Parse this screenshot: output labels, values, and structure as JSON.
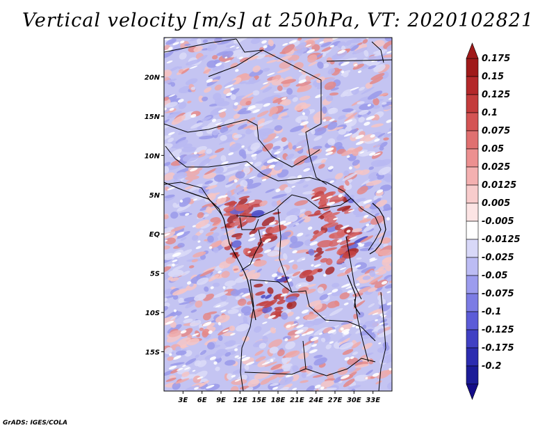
{
  "title": "Vertical velocity [m/s] at 250hPa, VT: 2020102821",
  "credit": "GrADS: IGES/COLA",
  "map": {
    "variable": "Vertical velocity",
    "units": "m/s",
    "level": "250hPa",
    "valid_time": "2020102821",
    "lon_range": [
      0,
      36
    ],
    "lat_range": [
      -20,
      25
    ],
    "lat_ticks": [
      {
        "value": 20,
        "label": "20N"
      },
      {
        "value": 15,
        "label": "15N"
      },
      {
        "value": 10,
        "label": "10N"
      },
      {
        "value": 5,
        "label": "5N"
      },
      {
        "value": 0,
        "label": "EQ"
      },
      {
        "value": -5,
        "label": "5S"
      },
      {
        "value": -10,
        "label": "10S"
      },
      {
        "value": -15,
        "label": "15S"
      }
    ],
    "lon_ticks": [
      {
        "value": 3,
        "label": "3E"
      },
      {
        "value": 6,
        "label": "6E"
      },
      {
        "value": 9,
        "label": "9E"
      },
      {
        "value": 12,
        "label": "12E"
      },
      {
        "value": 15,
        "label": "15E"
      },
      {
        "value": 18,
        "label": "18E"
      },
      {
        "value": 21,
        "label": "21E"
      },
      {
        "value": 24,
        "label": "24E"
      },
      {
        "value": 27,
        "label": "27E"
      },
      {
        "value": 30,
        "label": "30E"
      },
      {
        "value": 33,
        "label": "33E"
      }
    ]
  },
  "colorbar": {
    "levels": [
      {
        "label": "0.175",
        "color": "#a01a1a"
      },
      {
        "label": "0.15",
        "color": "#b4282a"
      },
      {
        "label": "0.125",
        "color": "#c43c3c"
      },
      {
        "label": "0.1",
        "color": "#d45454"
      },
      {
        "label": "0.075",
        "color": "#e07070"
      },
      {
        "label": "0.05",
        "color": "#ec9090"
      },
      {
        "label": "0.025",
        "color": "#f4b0b0"
      },
      {
        "label": "0.0125",
        "color": "#f8cccc"
      },
      {
        "label": "0.005",
        "color": "#fce4e4"
      },
      {
        "label": "-0.005",
        "color": "#ffffff"
      },
      {
        "label": "-0.0125",
        "color": "#d8d8f8"
      },
      {
        "label": "-0.025",
        "color": "#bcbcf4"
      },
      {
        "label": "-0.05",
        "color": "#9c9cee"
      },
      {
        "label": "-0.075",
        "color": "#7c7ce4"
      },
      {
        "label": "-0.1",
        "color": "#5c5cd8"
      },
      {
        "label": "-0.125",
        "color": "#4040c4"
      },
      {
        "label": "-0.175",
        "color": "#2c2cb0"
      },
      {
        "label": "-0.2",
        "color": "#1c1c98"
      }
    ],
    "top_color": "#a01a1a",
    "bottom_color": "#140c88"
  }
}
